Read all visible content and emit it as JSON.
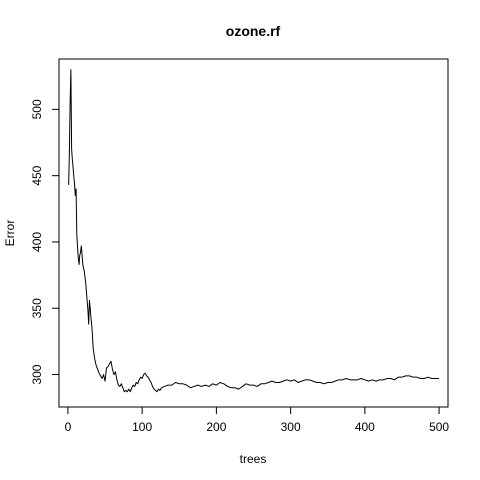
{
  "chart_data": {
    "type": "line",
    "title": "ozone.rf",
    "xlabel": "trees",
    "ylabel": "Error",
    "xlim": [
      -12,
      512
    ],
    "ylim": [
      275.5,
      538
    ],
    "x_ticks": [
      0,
      100,
      200,
      300,
      400,
      500
    ],
    "y_ticks": [
      300,
      350,
      400,
      450,
      500
    ],
    "grid": false,
    "series": [
      {
        "color": "#000000",
        "points": [
          [
            1,
            443
          ],
          [
            2,
            468
          ],
          [
            3,
            505
          ],
          [
            4,
            530
          ],
          [
            5,
            470
          ],
          [
            6,
            462
          ],
          [
            7,
            456
          ],
          [
            8,
            449
          ],
          [
            9,
            443
          ],
          [
            10,
            435
          ],
          [
            11,
            440
          ],
          [
            12,
            405
          ],
          [
            13,
            396
          ],
          [
            14,
            388
          ],
          [
            15,
            383
          ],
          [
            16,
            390
          ],
          [
            17,
            392
          ],
          [
            18,
            397
          ],
          [
            19,
            391
          ],
          [
            20,
            383
          ],
          [
            22,
            378
          ],
          [
            24,
            369
          ],
          [
            26,
            355
          ],
          [
            27,
            348
          ],
          [
            28,
            338
          ],
          [
            29,
            356
          ],
          [
            30,
            350
          ],
          [
            31,
            343
          ],
          [
            32,
            338
          ],
          [
            33,
            330
          ],
          [
            34,
            320
          ],
          [
            36,
            312
          ],
          [
            38,
            307
          ],
          [
            40,
            304
          ],
          [
            42,
            301
          ],
          [
            44,
            299
          ],
          [
            46,
            297
          ],
          [
            48,
            300
          ],
          [
            50,
            295
          ],
          [
            52,
            305
          ],
          [
            54,
            306
          ],
          [
            56,
            308
          ],
          [
            58,
            310
          ],
          [
            60,
            304
          ],
          [
            62,
            300
          ],
          [
            64,
            302
          ],
          [
            66,
            296
          ],
          [
            68,
            292
          ],
          [
            70,
            291
          ],
          [
            72,
            293
          ],
          [
            74,
            290
          ],
          [
            76,
            287
          ],
          [
            78,
            288
          ],
          [
            80,
            287
          ],
          [
            82,
            289
          ],
          [
            84,
            287
          ],
          [
            86,
            290
          ],
          [
            88,
            292
          ],
          [
            90,
            291
          ],
          [
            92,
            294
          ],
          [
            94,
            293
          ],
          [
            96,
            296
          ],
          [
            98,
            298
          ],
          [
            100,
            297
          ],
          [
            102,
            300
          ],
          [
            104,
            301
          ],
          [
            106,
            299
          ],
          [
            108,
            298
          ],
          [
            110,
            296
          ],
          [
            112,
            294
          ],
          [
            114,
            291
          ],
          [
            116,
            289
          ],
          [
            118,
            288
          ],
          [
            120,
            287
          ],
          [
            122,
            289
          ],
          [
            124,
            288
          ],
          [
            126,
            290
          ],
          [
            130,
            291
          ],
          [
            135,
            292
          ],
          [
            140,
            292
          ],
          [
            145,
            294
          ],
          [
            150,
            293
          ],
          [
            155,
            293
          ],
          [
            160,
            292
          ],
          [
            165,
            290
          ],
          [
            170,
            291
          ],
          [
            175,
            292
          ],
          [
            180,
            291
          ],
          [
            185,
            292
          ],
          [
            190,
            291
          ],
          [
            195,
            293
          ],
          [
            200,
            292
          ],
          [
            205,
            294
          ],
          [
            210,
            293
          ],
          [
            215,
            291
          ],
          [
            220,
            290
          ],
          [
            225,
            290
          ],
          [
            230,
            289
          ],
          [
            235,
            291
          ],
          [
            240,
            293
          ],
          [
            245,
            292
          ],
          [
            250,
            292
          ],
          [
            255,
            291
          ],
          [
            260,
            293
          ],
          [
            265,
            293
          ],
          [
            270,
            294
          ],
          [
            275,
            295
          ],
          [
            280,
            294
          ],
          [
            285,
            294
          ],
          [
            290,
            295
          ],
          [
            295,
            296
          ],
          [
            300,
            295
          ],
          [
            305,
            296
          ],
          [
            310,
            294
          ],
          [
            315,
            295
          ],
          [
            320,
            296
          ],
          [
            325,
            296
          ],
          [
            330,
            295
          ],
          [
            335,
            294
          ],
          [
            340,
            294
          ],
          [
            345,
            293
          ],
          [
            350,
            294
          ],
          [
            355,
            294
          ],
          [
            360,
            295
          ],
          [
            365,
            296
          ],
          [
            370,
            296
          ],
          [
            375,
            297
          ],
          [
            380,
            296
          ],
          [
            385,
            296
          ],
          [
            390,
            296
          ],
          [
            395,
            297
          ],
          [
            400,
            296
          ],
          [
            405,
            295
          ],
          [
            410,
            296
          ],
          [
            415,
            295
          ],
          [
            420,
            296
          ],
          [
            425,
            296
          ],
          [
            430,
            297
          ],
          [
            435,
            297
          ],
          [
            440,
            296
          ],
          [
            445,
            298
          ],
          [
            450,
            298
          ],
          [
            455,
            299
          ],
          [
            460,
            299
          ],
          [
            465,
            298
          ],
          [
            470,
            298
          ],
          [
            475,
            297
          ],
          [
            480,
            297
          ],
          [
            485,
            298
          ],
          [
            490,
            297
          ],
          [
            495,
            297
          ],
          [
            500,
            297
          ]
        ]
      }
    ]
  }
}
